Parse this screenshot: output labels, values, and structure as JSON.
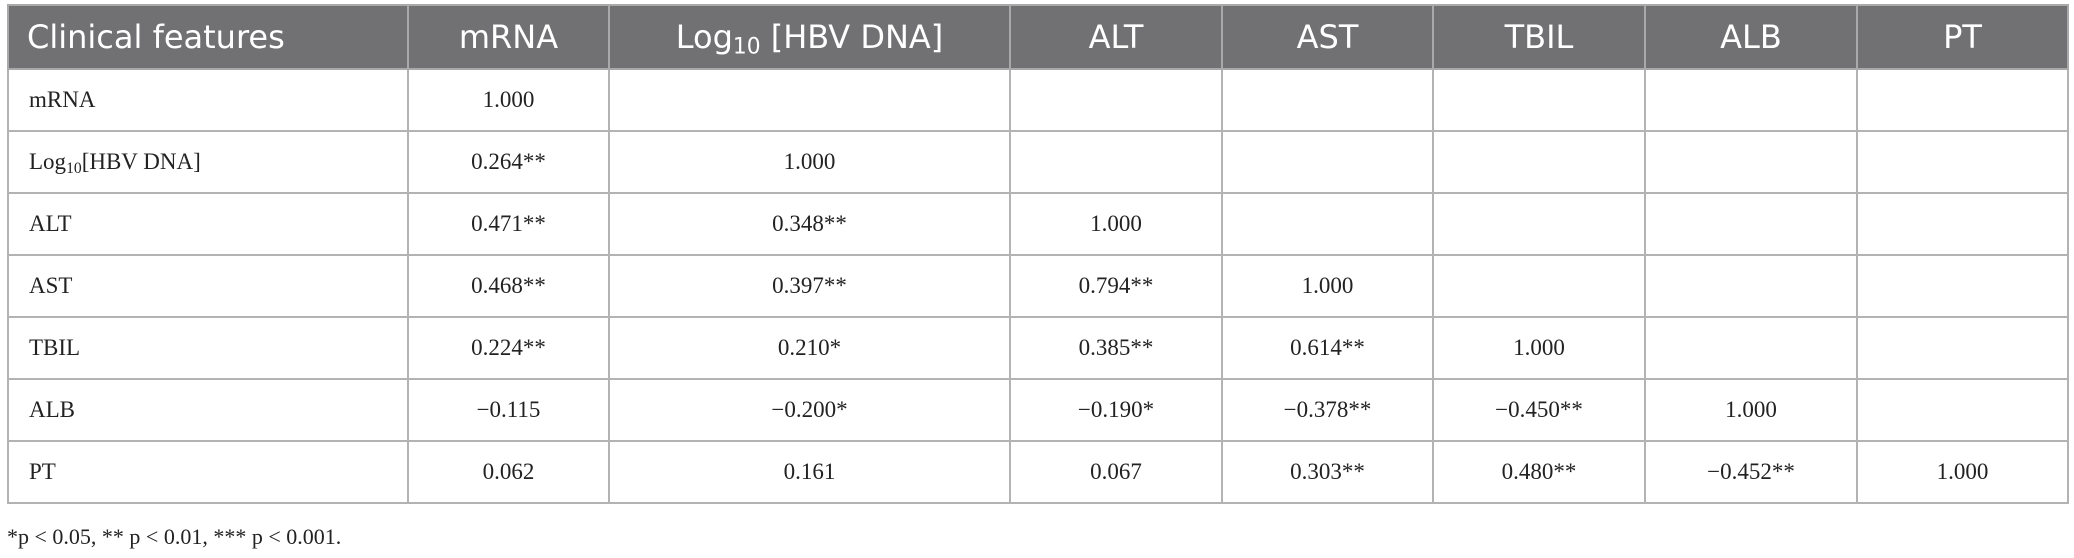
{
  "table": {
    "columns": [
      "Clinical features",
      "mRNA",
      {
        "base": "Log",
        "sub": "10",
        "suffix": " [HBV DNA]"
      },
      "ALT",
      "AST",
      "TBIL",
      "ALB",
      "PT"
    ],
    "rows": [
      [
        "mRNA",
        "1.000"
      ],
      [
        {
          "base": "Log",
          "sub": "10",
          "suffix": "[HBV DNA]"
        },
        "0.264**",
        "1.000"
      ],
      [
        "ALT",
        "0.471**",
        "0.348**",
        "1.000"
      ],
      [
        "AST",
        "0.468**",
        "0.397**",
        "0.794**",
        "1.000"
      ],
      [
        "TBIL",
        "0.224**",
        "0.210*",
        "0.385**",
        "0.614**",
        "1.000"
      ],
      [
        "ALB",
        "−0.115",
        "−0.200*",
        "−0.190*",
        "−0.378**",
        "−0.450**",
        "1.000"
      ],
      [
        "PT",
        "0.062",
        "0.161",
        "0.067",
        "0.303**",
        "0.480**",
        "−0.452**",
        "1.000"
      ]
    ],
    "footnote": "*p < 0.05, ** p < 0.01, *** p < 0.001."
  }
}
